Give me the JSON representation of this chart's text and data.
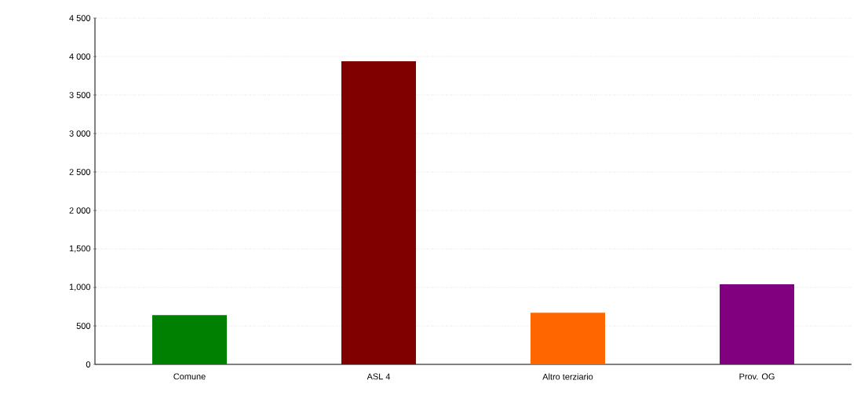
{
  "chart_data": {
    "type": "bar",
    "categories": [
      "Comune",
      "ASL 4",
      "Altro terziario",
      "Prov. OG"
    ],
    "values": [
      640,
      3940,
      670,
      1040
    ],
    "colors": [
      "#008000",
      "#800000",
      "#ff6600",
      "#800080"
    ],
    "ylim": [
      0,
      4500
    ],
    "yticks": [
      0,
      500,
      {
        "value": 1000,
        "label": "1,000"
      },
      {
        "value": 1500,
        "label": "1,500"
      },
      {
        "value": 2000,
        "label": "2 000"
      },
      {
        "value": 2500,
        "label": "2 500"
      },
      {
        "value": 3000,
        "label": "3 000"
      },
      {
        "value": 3500,
        "label": "3 500"
      },
      {
        "value": 4000,
        "label": "4 000"
      },
      {
        "value": 4500,
        "label": "4 500"
      }
    ],
    "grid": "y"
  }
}
